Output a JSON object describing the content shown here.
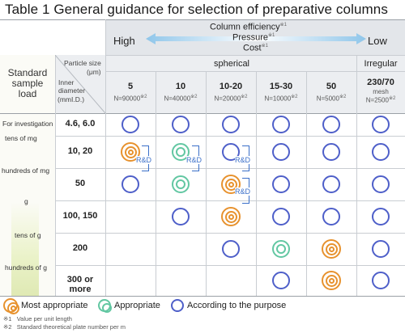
{
  "title": "Table 1 General guidance for selection of preparative columns",
  "header": {
    "high": "High",
    "low": "Low",
    "column_efficiency": "Column efficiency",
    "pressure": "Pressure",
    "cost": "Cost",
    "ast1": "※1",
    "spherical": "spherical",
    "irregular": "Irregular",
    "particle_size": "Particle size",
    "particle_unit": "(μm)",
    "inner_diameter": "Inner diameter",
    "inner_unit": "(mmI.D.)",
    "standard_sample_load": "Standard sample load"
  },
  "columns": [
    {
      "size": "5",
      "n": "N=90000",
      "note": "※2"
    },
    {
      "size": "10",
      "n": "N=40000",
      "note": "※2"
    },
    {
      "size": "10-20",
      "n": "N=20000",
      "note": "※2"
    },
    {
      "size": "15-30",
      "n": "N=10000",
      "note": "※2"
    },
    {
      "size": "50",
      "n": "N=5000",
      "note": "※2"
    },
    {
      "size": "230/70",
      "mesh": "mesh",
      "n": "N=2500",
      "note": "※2"
    }
  ],
  "rows": [
    {
      "diameter": "4.6, 6.0",
      "cells": [
        "A",
        "A",
        "A",
        "A",
        "A",
        "A"
      ]
    },
    {
      "diameter": "10, 20",
      "cells": [
        "M",
        "P",
        "A",
        "A",
        "A",
        "A"
      ]
    },
    {
      "diameter": "50",
      "cells": [
        "A",
        "P",
        "M",
        "A",
        "A",
        "A"
      ]
    },
    {
      "diameter": "100, 150",
      "cells": [
        "",
        "A",
        "M",
        "A",
        "A",
        "A"
      ]
    },
    {
      "diameter": "200",
      "cells": [
        "",
        "",
        "A",
        "P",
        "M",
        "A"
      ]
    },
    {
      "diameter": "300 or more",
      "cells": [
        "",
        "",
        "",
        "A",
        "M",
        "A"
      ]
    }
  ],
  "load_labels": [
    "For investigation",
    "tens of mg",
    "hundreds of mg",
    "g",
    "tens of g",
    "hundreds of g"
  ],
  "rd_label": "R&D",
  "legend": {
    "most": "Most appropriate",
    "appropriate": "Appropriate",
    "purpose": "According to the purpose"
  },
  "notes": [
    {
      "mark": "※1",
      "text": "Value per unit length"
    },
    {
      "mark": "※2",
      "text": "Standard theoretical plate number per m"
    }
  ],
  "colors": {
    "blue_ring": "#4e5fc9",
    "green_ring": "#62c7a2",
    "orange_ring": "#e7922e",
    "rd_blue": "#3a6fc9",
    "arrow": "#8fc6ea"
  }
}
